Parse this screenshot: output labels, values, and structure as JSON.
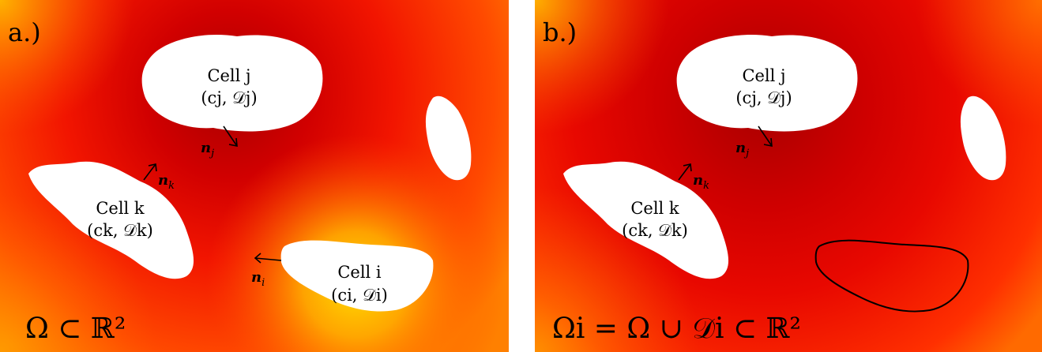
{
  "colors": {
    "bg_dark": "#a80000",
    "bg_red": "#ff1a00",
    "bg_orange": "#ff6a00",
    "bg_yellow": "#ffd200",
    "cell_fill": "#ffffff",
    "outline": "#000000"
  },
  "panel_a": {
    "letter": "a.)",
    "cell_j": {
      "line1": "Cell j",
      "line2": "(cj, 𝒟j)"
    },
    "cell_k": {
      "line1": "Cell k",
      "line2": "(ck, 𝒟k)"
    },
    "cell_i": {
      "line1": "Cell i",
      "line2": "(ci, 𝒟i)"
    },
    "n_j": {
      "base": "n",
      "sub": "j"
    },
    "n_k": {
      "base": "n",
      "sub": "k"
    },
    "n_i": {
      "base": "n",
      "sub": "i"
    },
    "domain": "Ω ⊂ ℝ²"
  },
  "panel_b": {
    "letter": "b.)",
    "cell_j": {
      "line1": "Cell j",
      "line2": "(cj, 𝒟j)"
    },
    "cell_k": {
      "line1": "Cell k",
      "line2": "(ck, 𝒟k)"
    },
    "n_j": {
      "base": "n",
      "sub": "j"
    },
    "n_k": {
      "base": "n",
      "sub": "k"
    },
    "domain": "Ωi = Ω ∪ 𝒟i ⊂ ℝ²"
  }
}
